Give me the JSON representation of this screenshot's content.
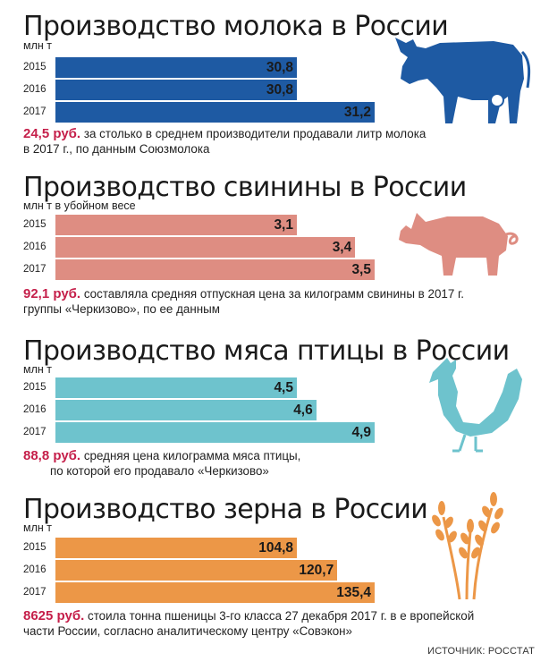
{
  "colors": {
    "milk": "#1e5aa3",
    "pork": "#de8d82",
    "poultry": "#6ec3cd",
    "grain": "#ec9747",
    "price": "#c51f4a"
  },
  "source": "ИСТОЧНИК: РОССТАТ",
  "sections": [
    {
      "title": "Производство молока в России",
      "unit": "млн т",
      "color": "#1e5aa3",
      "icon": "cow-icon",
      "years": [
        "2015",
        "2016",
        "2017"
      ],
      "labels": [
        "30,8",
        "30,8",
        "31,2"
      ],
      "note": {
        "price": "24,5 руб.",
        "text1": " за столько в среднем производители продавали литр молока",
        "text2": "в 2017 г., по данным Союзмолока"
      }
    },
    {
      "title": "Производство свинины в России",
      "unit": "млн т в убойном весе",
      "color": "#de8d82",
      "icon": "pig-icon",
      "years": [
        "2015",
        "2016",
        "2017"
      ],
      "labels": [
        "3,1",
        "3,4",
        "3,5"
      ],
      "note": {
        "price": "92,1 руб.",
        "text1": " составляла средняя отпускная цена за килограмм свинины в 2017 г.",
        "text2": "группы «Черкизово», по ее данным"
      }
    },
    {
      "title": "Производство мяса птицы в России",
      "unit": "млн т",
      "color": "#6ec3cd",
      "icon": "rooster-icon",
      "years": [
        "2015",
        "2016",
        "2017"
      ],
      "labels": [
        "4,5",
        "4,6",
        "4,9"
      ],
      "note": {
        "price": "88,8 руб.",
        "text1": " средняя цена килограмма мяса птицы,",
        "text2": "по которой его продавало «Черкизово»"
      }
    },
    {
      "title": "Производство зерна в России",
      "unit": "млн т",
      "color": "#ec9747",
      "icon": "wheat-icon",
      "years": [
        "2015",
        "2016",
        "2017"
      ],
      "labels": [
        "104,8",
        "120,7",
        "135,4"
      ],
      "note": {
        "price": "8625 руб.",
        "text1": " стоила тонна пшеницы 3-го класса 27 декабря 2017 г. в е вропейской",
        "text2": "части России, согласно аналитическому центру «Совэкон»"
      }
    }
  ],
  "chart_data": [
    {
      "type": "bar",
      "title": "Производство молока в России",
      "ylabel": "млн т",
      "categories": [
        "2015",
        "2016",
        "2017"
      ],
      "values": [
        30.8,
        30.8,
        31.2
      ],
      "orientation": "horizontal"
    },
    {
      "type": "bar",
      "title": "Производство свинины в России",
      "ylabel": "млн т в убойном весе",
      "categories": [
        "2015",
        "2016",
        "2017"
      ],
      "values": [
        3.1,
        3.4,
        3.5
      ],
      "orientation": "horizontal"
    },
    {
      "type": "bar",
      "title": "Производство мяса птицы в России",
      "ylabel": "млн т",
      "categories": [
        "2015",
        "2016",
        "2017"
      ],
      "values": [
        4.5,
        4.6,
        4.9
      ],
      "orientation": "horizontal"
    },
    {
      "type": "bar",
      "title": "Производство зерна в России",
      "ylabel": "млн т",
      "categories": [
        "2015",
        "2016",
        "2017"
      ],
      "values": [
        104.8,
        120.7,
        135.4
      ],
      "orientation": "horizontal"
    }
  ]
}
